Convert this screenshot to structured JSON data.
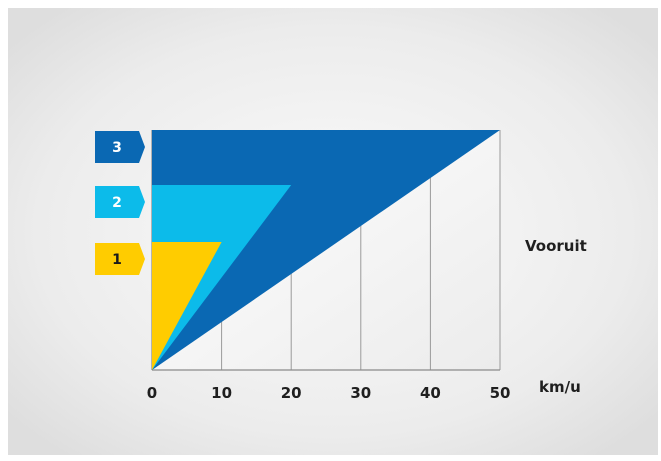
{
  "chart_data": {
    "type": "area",
    "title": "",
    "xlabel": "km/u",
    "ylabel": "",
    "side_label": "Vooruit",
    "x_ticks": [
      0,
      10,
      20,
      30,
      40,
      50
    ],
    "xlim": [
      0,
      50
    ],
    "levels": 3,
    "grid": true,
    "series": [
      {
        "name": "3",
        "max_speed": 50,
        "level": 3,
        "color": "#0a68b3",
        "label_color": "#ffffff"
      },
      {
        "name": "2",
        "max_speed": 20,
        "level": 2,
        "color": "#0cbbea",
        "label_color": "#ffffff"
      },
      {
        "name": "1",
        "max_speed": 10,
        "level": 1,
        "color": "#ffcc00",
        "label_color": "#1a1a1a"
      }
    ]
  }
}
